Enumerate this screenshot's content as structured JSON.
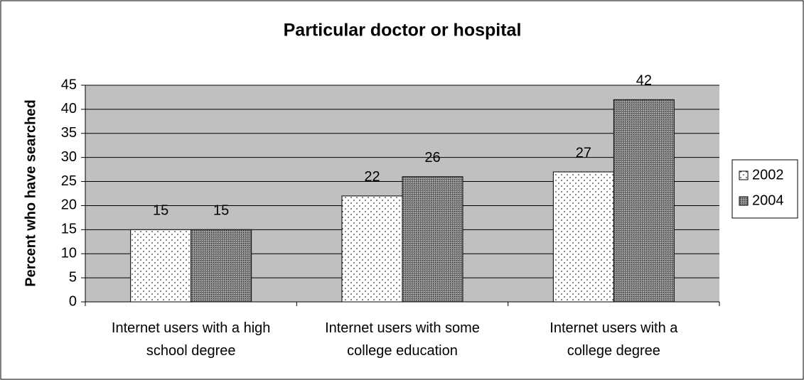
{
  "chart_data": {
    "type": "bar",
    "title": "Particular doctor or hospital",
    "y_label": "Percent who have searched",
    "categories": [
      "Internet users with a high school degree",
      "Internet users with some college education",
      "Internet users with a college degree"
    ],
    "series": [
      {
        "name": "2002",
        "color": "#ffffff",
        "values": [
          15,
          22,
          27
        ]
      },
      {
        "name": "2004",
        "color": "#808080",
        "values": [
          15,
          26,
          42
        ]
      }
    ],
    "ylim": [
      0,
      45
    ],
    "yticks": [
      0,
      5,
      10,
      15,
      20,
      25,
      30,
      35,
      40,
      45
    ],
    "grid": true,
    "legend": "right"
  }
}
